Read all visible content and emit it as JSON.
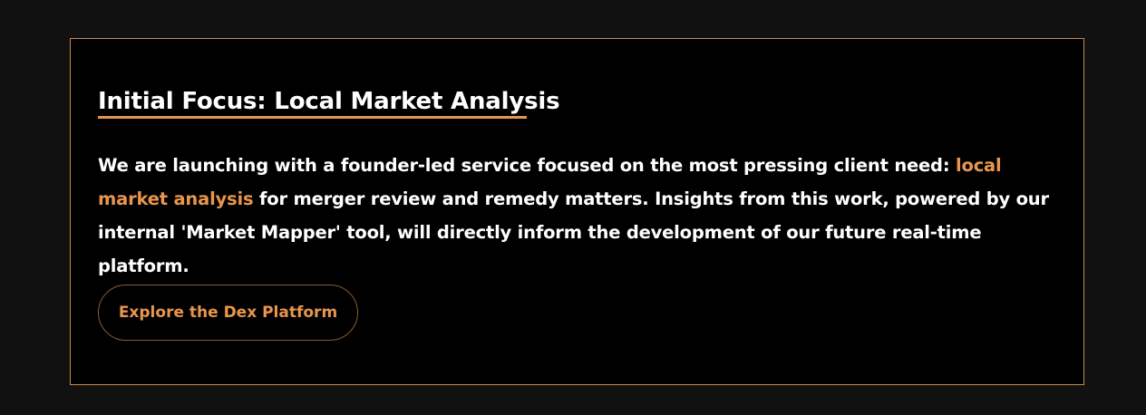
{
  "section": {
    "heading": "Initial Focus: Local Market Analysis",
    "body_before": "We are launching with a founder-led service focused on the most pressing client need: ",
    "body_highlight": "local market analysis",
    "body_after": " for merger review and remedy matters. Insights from this work, powered by our internal 'Market Mapper' tool, will directly inform the development of our future real-time platform.",
    "cta_label": "Explore the Dex Platform"
  },
  "colors": {
    "accent": "#e8964d",
    "card_background": "#000000",
    "page_background": "#111111",
    "text": "#ffffff",
    "card_border": "#c98a4e"
  }
}
